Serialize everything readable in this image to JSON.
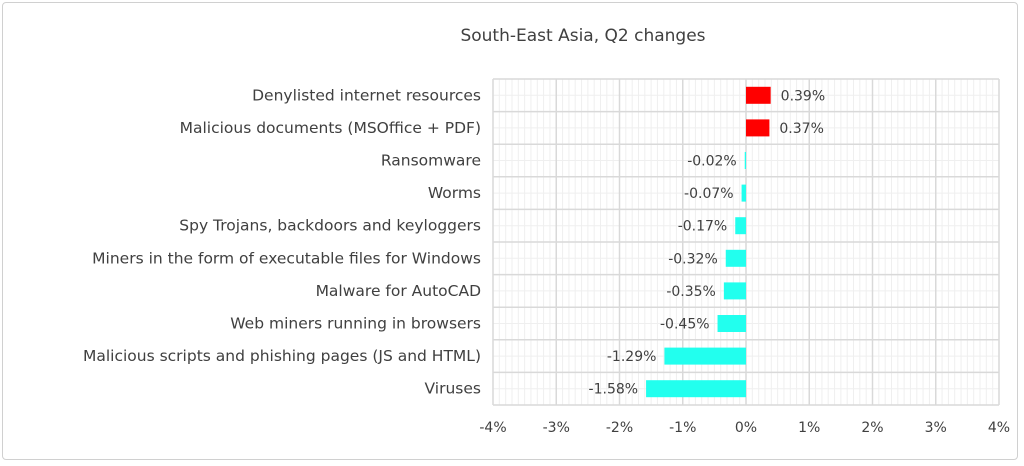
{
  "chart_data": {
    "type": "bar",
    "orientation": "horizontal",
    "title": "South-East Asia, Q2 changes",
    "categories": [
      "Denylisted internet resources",
      "Malicious documents (MSOffice + PDF)",
      "Ransomware",
      "Worms",
      "Spy Trojans, backdoors and keyloggers",
      "Miners in the form of executable files for Windows",
      "Malware for AutoCAD",
      "Web miners running in browsers",
      "Malicious scripts and phishing pages (JS and HTML)",
      "Viruses"
    ],
    "values": [
      0.39,
      0.37,
      -0.02,
      -0.07,
      -0.17,
      -0.32,
      -0.35,
      -0.45,
      -1.29,
      -1.58
    ],
    "data_labels": [
      "0.39%",
      "0.37%",
      "-0.02%",
      "-0.07%",
      "-0.17%",
      "-0.32%",
      "-0.35%",
      "-0.45%",
      "-1.29%",
      "-1.58%"
    ],
    "xlim": [
      -4,
      4
    ],
    "xticks": [
      "-4%",
      "-3%",
      "-2%",
      "-1%",
      "0%",
      "1%",
      "2%",
      "3%",
      "4%"
    ],
    "xlabel": "",
    "ylabel": "",
    "grid": true,
    "colors": {
      "positive": "#ff0000",
      "negative": "#22ffee",
      "grid_major": "#d9d9d9",
      "grid_minor": "#efefef"
    }
  }
}
